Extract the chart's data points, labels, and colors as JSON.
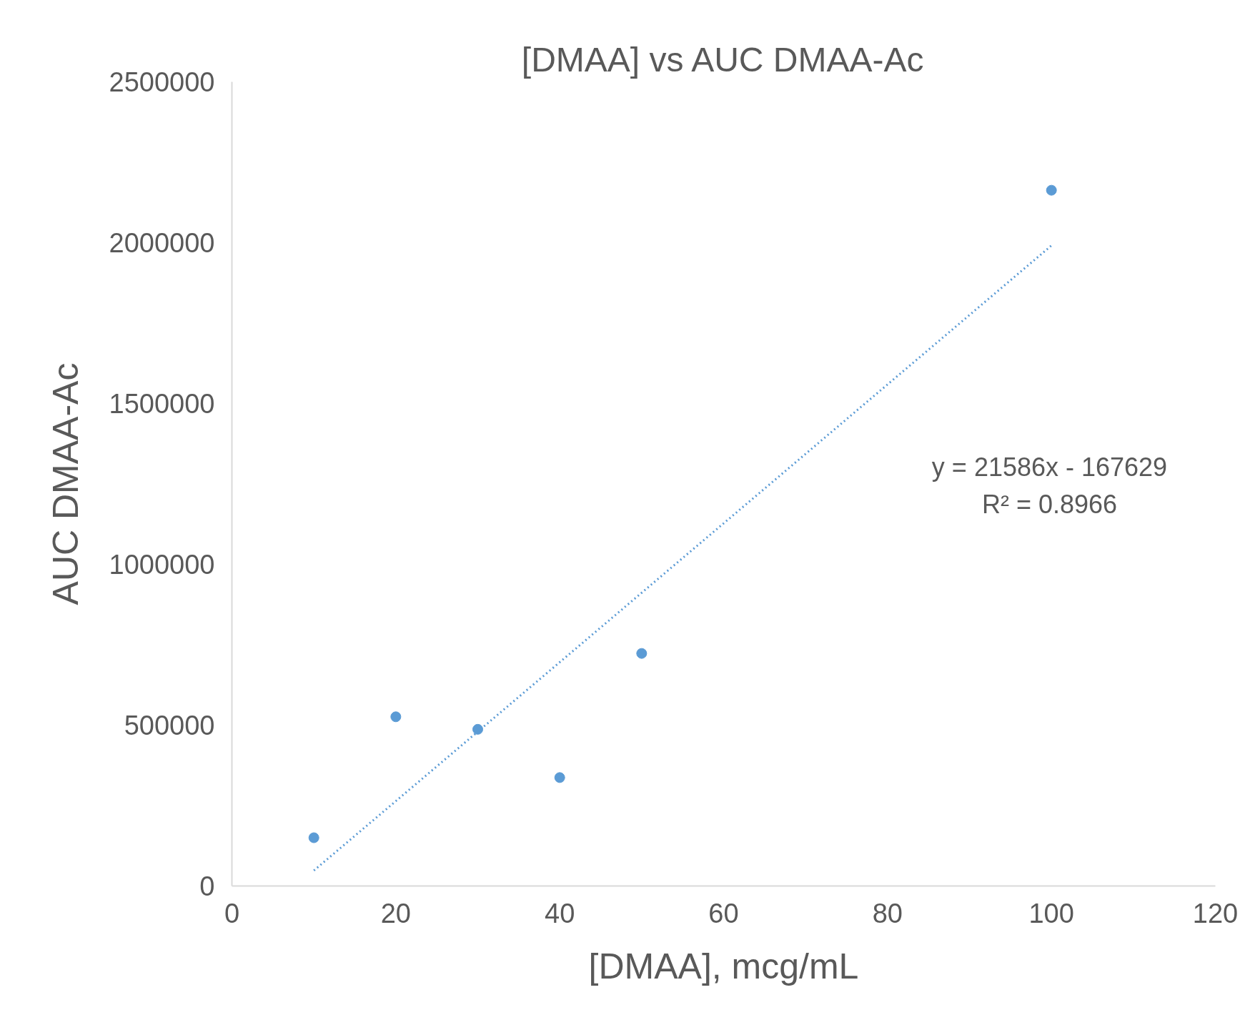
{
  "chart_data": {
    "type": "scatter",
    "title": "[DMAA] vs AUC DMAA-Ac",
    "xlabel": "[DMAA], mcg/mL",
    "ylabel": "AUC DMAA-Ac",
    "x": [
      10,
      20,
      30,
      40,
      50,
      100
    ],
    "series": [
      {
        "color": "#5b9bd5",
        "marker": "circle",
        "values": [
          150000,
          526000,
          487000,
          337000,
          723000,
          2163000
        ]
      },
      {
        "type": "line",
        "color": "#5b9bd5",
        "line_style": "dotted",
        "marker": "none",
        "x": [
          10,
          100
        ],
        "values": [
          48000,
          1991000
        ]
      }
    ],
    "xlim": [
      0,
      120
    ],
    "xticks": [
      0,
      20,
      40,
      60,
      80,
      100,
      120
    ],
    "ylim": [
      0,
      2500000
    ],
    "yticks": [
      0,
      500000,
      1000000,
      1500000,
      2000000,
      2500000
    ],
    "grid": false,
    "annotations": [
      "y = 21586x - 167629",
      "R² = 0.8966"
    ]
  }
}
